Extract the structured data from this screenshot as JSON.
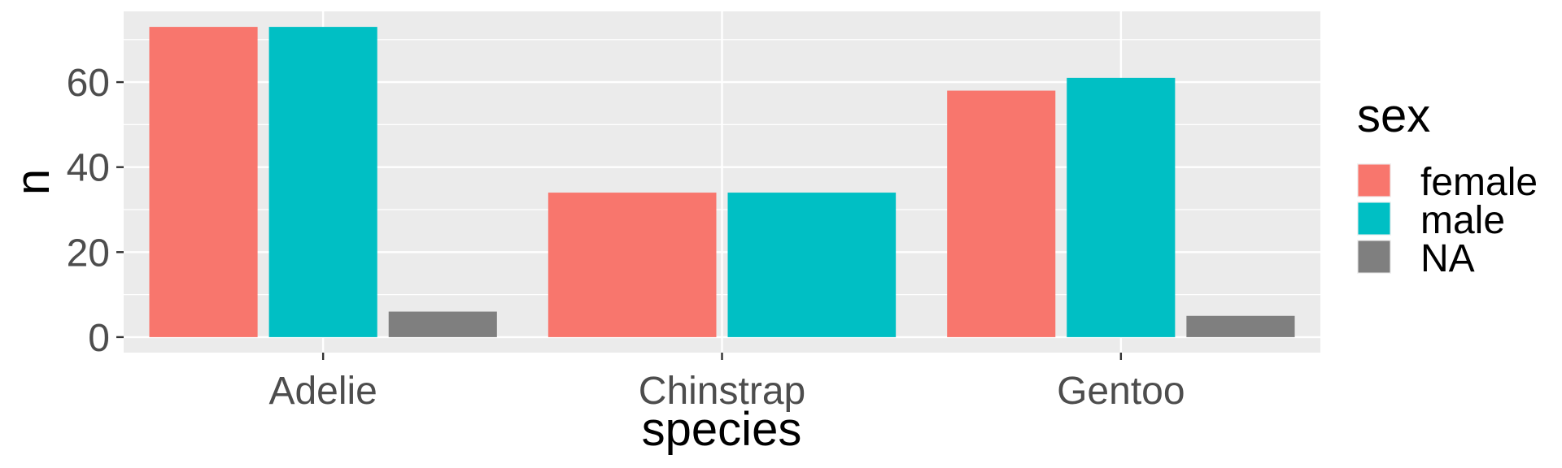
{
  "chart_data": {
    "type": "bar",
    "categories": [
      "Adelie",
      "Chinstrap",
      "Gentoo"
    ],
    "series": [
      {
        "name": "female",
        "color": "#F8766D",
        "values": [
          73,
          34,
          58
        ]
      },
      {
        "name": "male",
        "color": "#00BFC4",
        "values": [
          73,
          34,
          61
        ]
      },
      {
        "name": "NA",
        "color": "#7F7F7F",
        "values": [
          6,
          null,
          5
        ]
      }
    ],
    "xlabel": "species",
    "ylabel": "n",
    "ylim": [
      -3.65,
      76.65
    ],
    "yticks": [
      0,
      20,
      40,
      60
    ],
    "ytick_labels": [
      "0",
      "20",
      "40",
      "60"
    ],
    "legend": {
      "title": "sex",
      "position": "right"
    },
    "grid": true,
    "panel_background": "#EBEBEB"
  }
}
